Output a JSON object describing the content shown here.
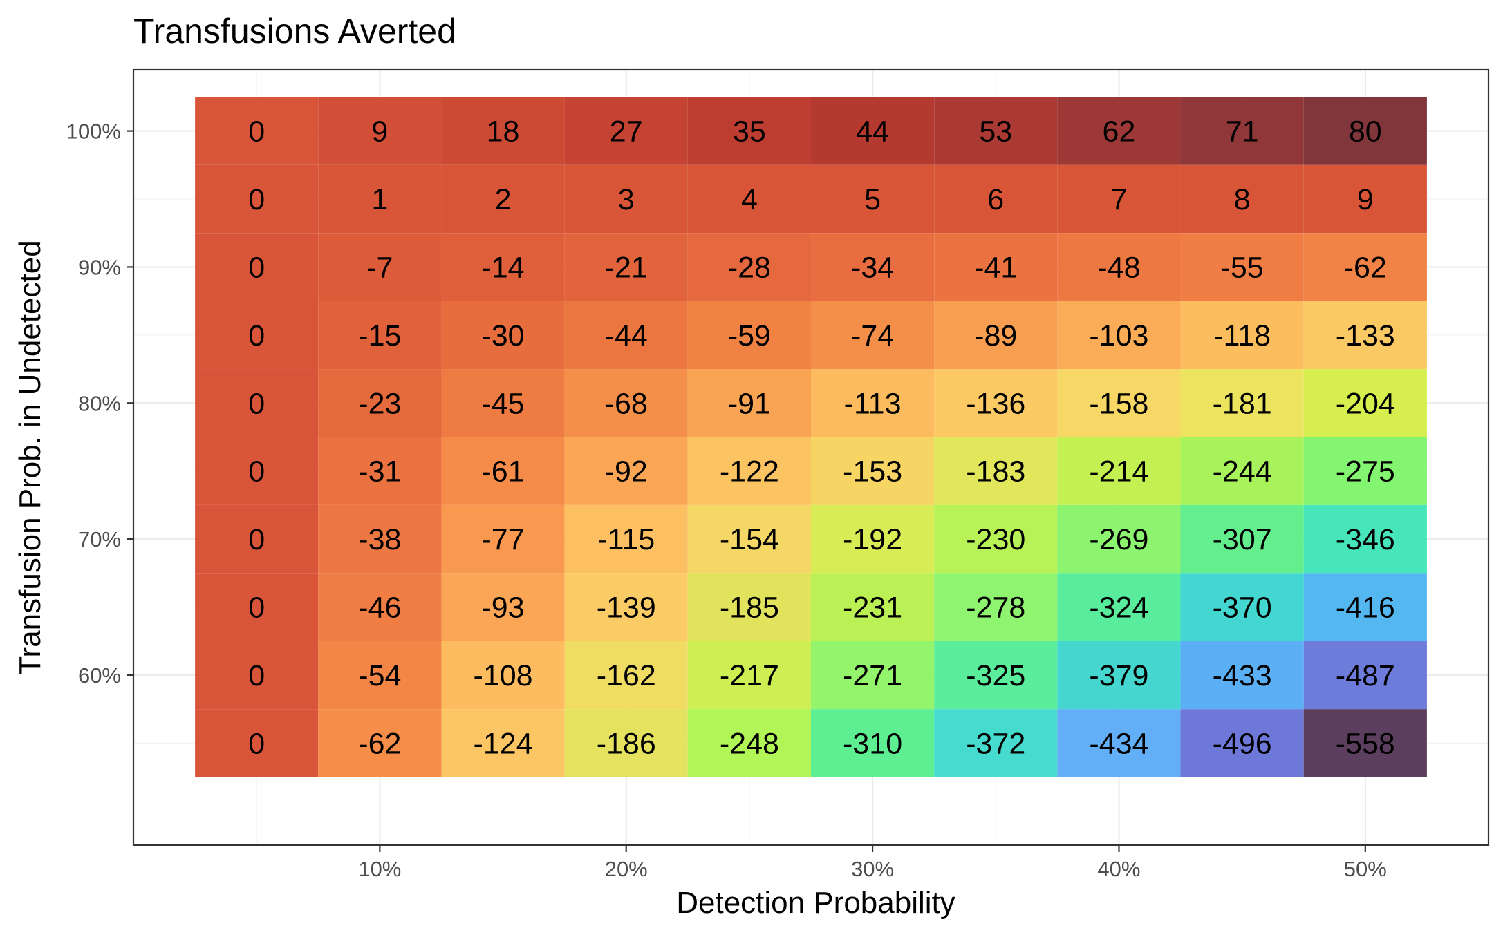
{
  "chart_data": {
    "type": "heatmap",
    "title": "Transfusions Averted",
    "xlabel": "Detection Probability",
    "ylabel": "Transfusion Prob. in Undetected",
    "x": [
      0.05,
      0.1,
      0.15,
      0.2,
      0.25,
      0.3,
      0.35,
      0.4,
      0.45,
      0.5
    ],
    "y": [
      1.0,
      0.95,
      0.9,
      0.85,
      0.8,
      0.75,
      0.7,
      0.65,
      0.6,
      0.55
    ],
    "x_ticks": [
      {
        "value": 0.1,
        "label": "10%"
      },
      {
        "value": 0.2,
        "label": "20%"
      },
      {
        "value": 0.3,
        "label": "30%"
      },
      {
        "value": 0.4,
        "label": "40%"
      },
      {
        "value": 0.5,
        "label": "50%"
      }
    ],
    "y_ticks": [
      {
        "value": 1.0,
        "label": "100%"
      },
      {
        "value": 0.9,
        "label": "90%"
      },
      {
        "value": 0.8,
        "label": "80%"
      },
      {
        "value": 0.7,
        "label": "70%"
      },
      {
        "value": 0.6,
        "label": "60%"
      }
    ],
    "xlim": [
      0.0,
      0.55
    ],
    "ylim": [
      0.475,
      1.045
    ],
    "values": [
      [
        0,
        9,
        18,
        27,
        35,
        44,
        53,
        62,
        71,
        80
      ],
      [
        0,
        1,
        2,
        3,
        4,
        5,
        6,
        7,
        8,
        9
      ],
      [
        0,
        -7,
        -14,
        -21,
        -28,
        -34,
        -41,
        -48,
        -55,
        -62
      ],
      [
        0,
        -15,
        -30,
        -44,
        -59,
        -74,
        -89,
        -103,
        -118,
        -133
      ],
      [
        0,
        -23,
        -45,
        -68,
        -91,
        -113,
        -136,
        -158,
        -181,
        -204
      ],
      [
        0,
        -31,
        -61,
        -92,
        -122,
        -153,
        -183,
        -214,
        -244,
        -275
      ],
      [
        0,
        -38,
        -77,
        -115,
        -154,
        -192,
        -230,
        -269,
        -307,
        -346
      ],
      [
        0,
        -46,
        -93,
        -139,
        -185,
        -231,
        -278,
        -324,
        -370,
        -416
      ],
      [
        0,
        -54,
        -108,
        -162,
        -217,
        -271,
        -325,
        -379,
        -433,
        -487
      ],
      [
        0,
        -62,
        -124,
        -186,
        -248,
        -310,
        -372,
        -434,
        -496,
        -558
      ]
    ],
    "colors": [
      [
        "#d9553a",
        "#d24e36",
        "#cc4934",
        "#c44332",
        "#bd3e30",
        "#b43a30",
        "#aa3a33",
        "#9c3836",
        "#8f3739",
        "#80363b"
      ],
      [
        "#d9553a",
        "#d85538",
        "#d85538",
        "#d85538",
        "#d85538",
        "#d85538",
        "#d85538",
        "#d85538",
        "#d85538",
        "#d85538"
      ],
      [
        "#d9553a",
        "#dc5b38",
        "#df5f3a",
        "#e2643c",
        "#e5683e",
        "#e86d40",
        "#eb7241",
        "#ee7842",
        "#f07d44",
        "#f08345"
      ],
      [
        "#d9553a",
        "#e0613a",
        "#e76c3e",
        "#ec763f",
        "#f08244",
        "#f48f4a",
        "#f89e50",
        "#fbac56",
        "#fcbd5e",
        "#fbc964"
      ],
      [
        "#d9553a",
        "#e46a3e",
        "#ee7b42",
        "#f48f49",
        "#f9a453",
        "#fcbb5e",
        "#fcc964",
        "#f7d765",
        "#ece45f",
        "#d7ee4f"
      ],
      [
        "#d9553a",
        "#ea7140",
        "#f48b49",
        "#faa655",
        "#fcc363",
        "#f6d565",
        "#e1e65b",
        "#c4f151",
        "#a8f25c",
        "#84f570"
      ],
      [
        "#d9553a",
        "#ed7742",
        "#f8994f",
        "#fcbf61",
        "#f4d765",
        "#d7ec55",
        "#b7f356",
        "#8df46f",
        "#64ef8f",
        "#47e6ba"
      ],
      [
        "#d9553a",
        "#f07d44",
        "#fba656",
        "#fbcb66",
        "#e2e35c",
        "#bbf154",
        "#8ff46f",
        "#58ec9c",
        "#44d6d0",
        "#55b7ef"
      ],
      [
        "#d9553a",
        "#f38546",
        "#fcbc5f",
        "#f0dc63",
        "#cdef53",
        "#94f46b",
        "#5aed9b",
        "#45d6d0",
        "#5aaff5",
        "#6d7bdb"
      ],
      [
        "#d9553a",
        "#f68d49",
        "#fdc664",
        "#e4e25e",
        "#b1f556",
        "#5eef93",
        "#47dbd0",
        "#62aff7",
        "#6e78d8",
        "#5c3f5e"
      ]
    ],
    "grid": true,
    "legend": "none"
  }
}
